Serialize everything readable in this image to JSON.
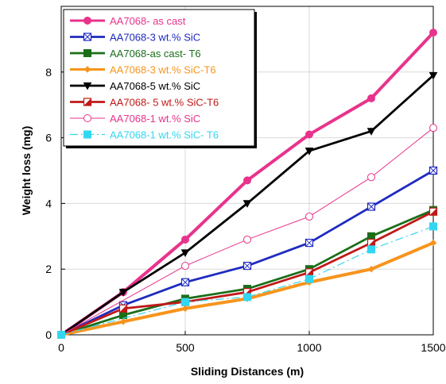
{
  "chart_data": {
    "type": "line",
    "xlabel": "Sliding Distances (m)",
    "ylabel": "Weight loss (mg)",
    "xlim": [
      0,
      1500
    ],
    "ylim": [
      0,
      10
    ],
    "xticks": [
      "0",
      "500",
      "1000",
      "1500"
    ],
    "yticks": [
      "0",
      "2",
      "4",
      "6",
      "8"
    ],
    "grid": "major gridlines on both axes",
    "legend_position": "top-left",
    "series": [
      {
        "name": "AA7068- as cast",
        "color": "#e8338c",
        "marker": "filled-circle",
        "line": "thick",
        "x": [
          0,
          250,
          500,
          750,
          1000,
          1250,
          1500
        ],
        "y": [
          0,
          1.3,
          2.9,
          4.7,
          6.1,
          7.2,
          9.2
        ]
      },
      {
        "name": "AA7068-3 wt.% SiC",
        "color": "#1f2bbf",
        "marker": "crossed-square",
        "x": [
          0,
          250,
          500,
          750,
          1000,
          1250,
          1500
        ],
        "y": [
          0,
          0.9,
          1.6,
          2.1,
          2.8,
          3.9,
          5.0
        ]
      },
      {
        "name": "AA7068-as cast- T6",
        "color": "#1a6e1a",
        "marker": "filled-square",
        "x": [
          0,
          250,
          500,
          750,
          1000,
          1250,
          1500
        ],
        "y": [
          0,
          0.6,
          1.1,
          1.4,
          2.0,
          3.0,
          3.8
        ]
      },
      {
        "name": "AA7068-3 wt.% SiC-T6",
        "color": "#f7941d",
        "marker": "diamond",
        "line": "thick",
        "x": [
          0,
          250,
          500,
          750,
          1000,
          1250,
          1500
        ],
        "y": [
          0,
          0.4,
          0.8,
          1.1,
          1.6,
          2.0,
          2.8
        ]
      },
      {
        "name": "AA7068-5 wt.% SiC",
        "color": "#000000",
        "marker": "filled-triangle-down",
        "x": [
          0,
          250,
          500,
          750,
          1000,
          1250,
          1500
        ],
        "y": [
          0,
          1.3,
          2.5,
          4.0,
          5.6,
          6.2,
          7.9
        ]
      },
      {
        "name": "AA7068- 5 wt.% SiC-T6",
        "color": "#c01818",
        "marker": "half-square",
        "x": [
          0,
          250,
          500,
          750,
          1000,
          1250,
          1500
        ],
        "y": [
          0,
          0.8,
          1.0,
          1.3,
          1.9,
          2.8,
          3.75
        ]
      },
      {
        "name": "AA7068-1 wt.% SiC",
        "color": "#e8338c",
        "marker": "open-circle",
        "line": "thin",
        "x": [
          0,
          500,
          750,
          1000,
          1250,
          1500
        ],
        "y": [
          0,
          2.1,
          2.9,
          3.6,
          4.8,
          6.3
        ]
      },
      {
        "name": "AA7068-1 wt.% SiC- T6",
        "color": "#33d6f0",
        "marker": "filled-square",
        "line": "dash-dot",
        "x": [
          0,
          500,
          750,
          1000,
          1250,
          1500
        ],
        "y": [
          0,
          1.0,
          1.15,
          1.7,
          2.6,
          3.3
        ]
      }
    ]
  }
}
